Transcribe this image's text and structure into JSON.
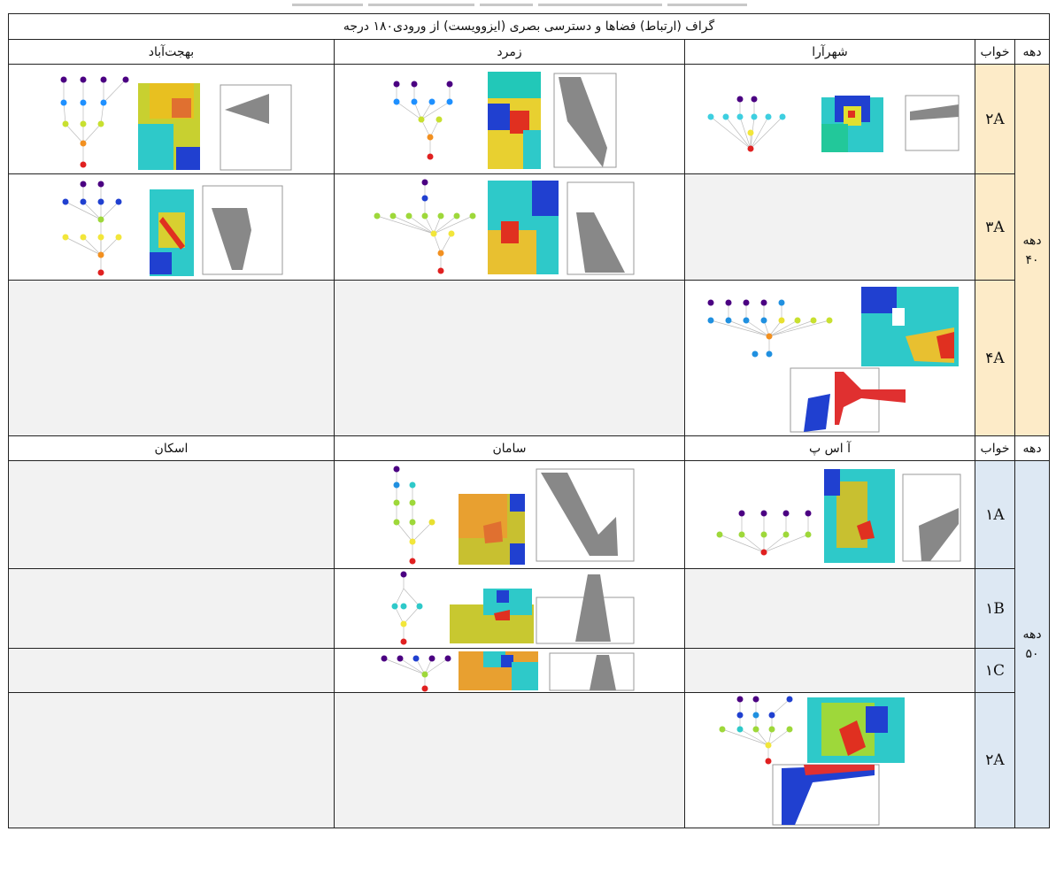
{
  "table": {
    "title": "گراف (ارتباط) فضاها و دسترسی بصری (ایزوویست) از ورودی۱۸۰ درجه",
    "header1": {
      "decade": "دهه",
      "bedroom": "خواب",
      "col1": "شهرآرا",
      "col2": "زمرد",
      "col3": "بهجت‌آباد"
    },
    "header2": {
      "decade": "دهه",
      "bedroom": "خواب",
      "col1": "آ اس پ",
      "col2": "سامان",
      "col3": "اسکان"
    },
    "decade40_label": "دهه ۴۰",
    "decade50_label": "دهه ۵۰",
    "rows40": [
      {
        "plan": "۲A"
      },
      {
        "plan": "۳A"
      },
      {
        "plan": "۴A"
      }
    ],
    "rows50": [
      {
        "plan": "۱A"
      },
      {
        "plan": "۱B"
      },
      {
        "plan": "۱C"
      },
      {
        "plan": "۲A"
      }
    ]
  },
  "colors": {
    "decade40": "#fdebc8",
    "decade50": "#dde8f3",
    "empty": "#f2f2f2"
  }
}
